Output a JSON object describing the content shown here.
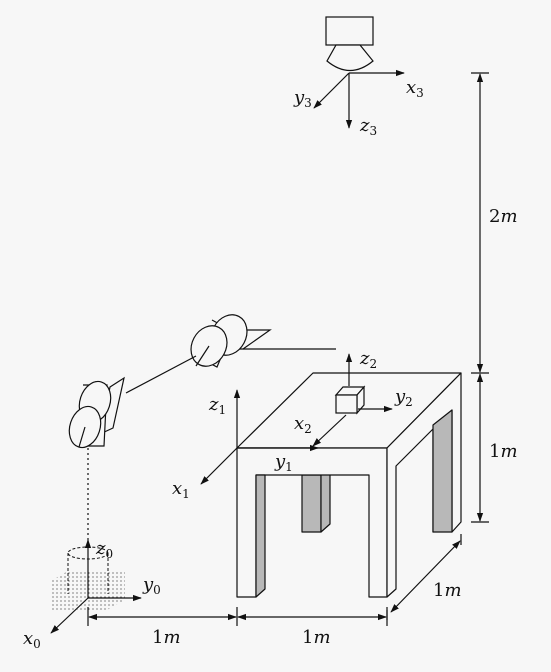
{
  "frames": {
    "frame0": {
      "x": "x",
      "x_sub": "0",
      "y": "y",
      "y_sub": "0",
      "z": "z",
      "z_sub": "0"
    },
    "frame1": {
      "x": "x",
      "x_sub": "1",
      "y": "y",
      "y_sub": "1",
      "z": "z",
      "z_sub": "1"
    },
    "frame2": {
      "x": "x",
      "x_sub": "2",
      "y": "y",
      "y_sub": "2",
      "z": "z",
      "z_sub": "2"
    },
    "frame3": {
      "x": "x",
      "x_sub": "3",
      "y": "y",
      "y_sub": "3",
      "z": "z",
      "z_sub": "3"
    }
  },
  "dimensions": {
    "camera_height": {
      "value": "2",
      "unit": "m"
    },
    "table_height": {
      "value": "1",
      "unit": "m"
    },
    "table_depth": {
      "value": "1",
      "unit": "m"
    },
    "base_to_table": {
      "value": "1",
      "unit": "m"
    },
    "table_width": {
      "value": "1",
      "unit": "m"
    }
  },
  "colors": {
    "stroke": "#111111",
    "leg_fill": "#b8b8b8",
    "background": "#f7f7f7"
  }
}
